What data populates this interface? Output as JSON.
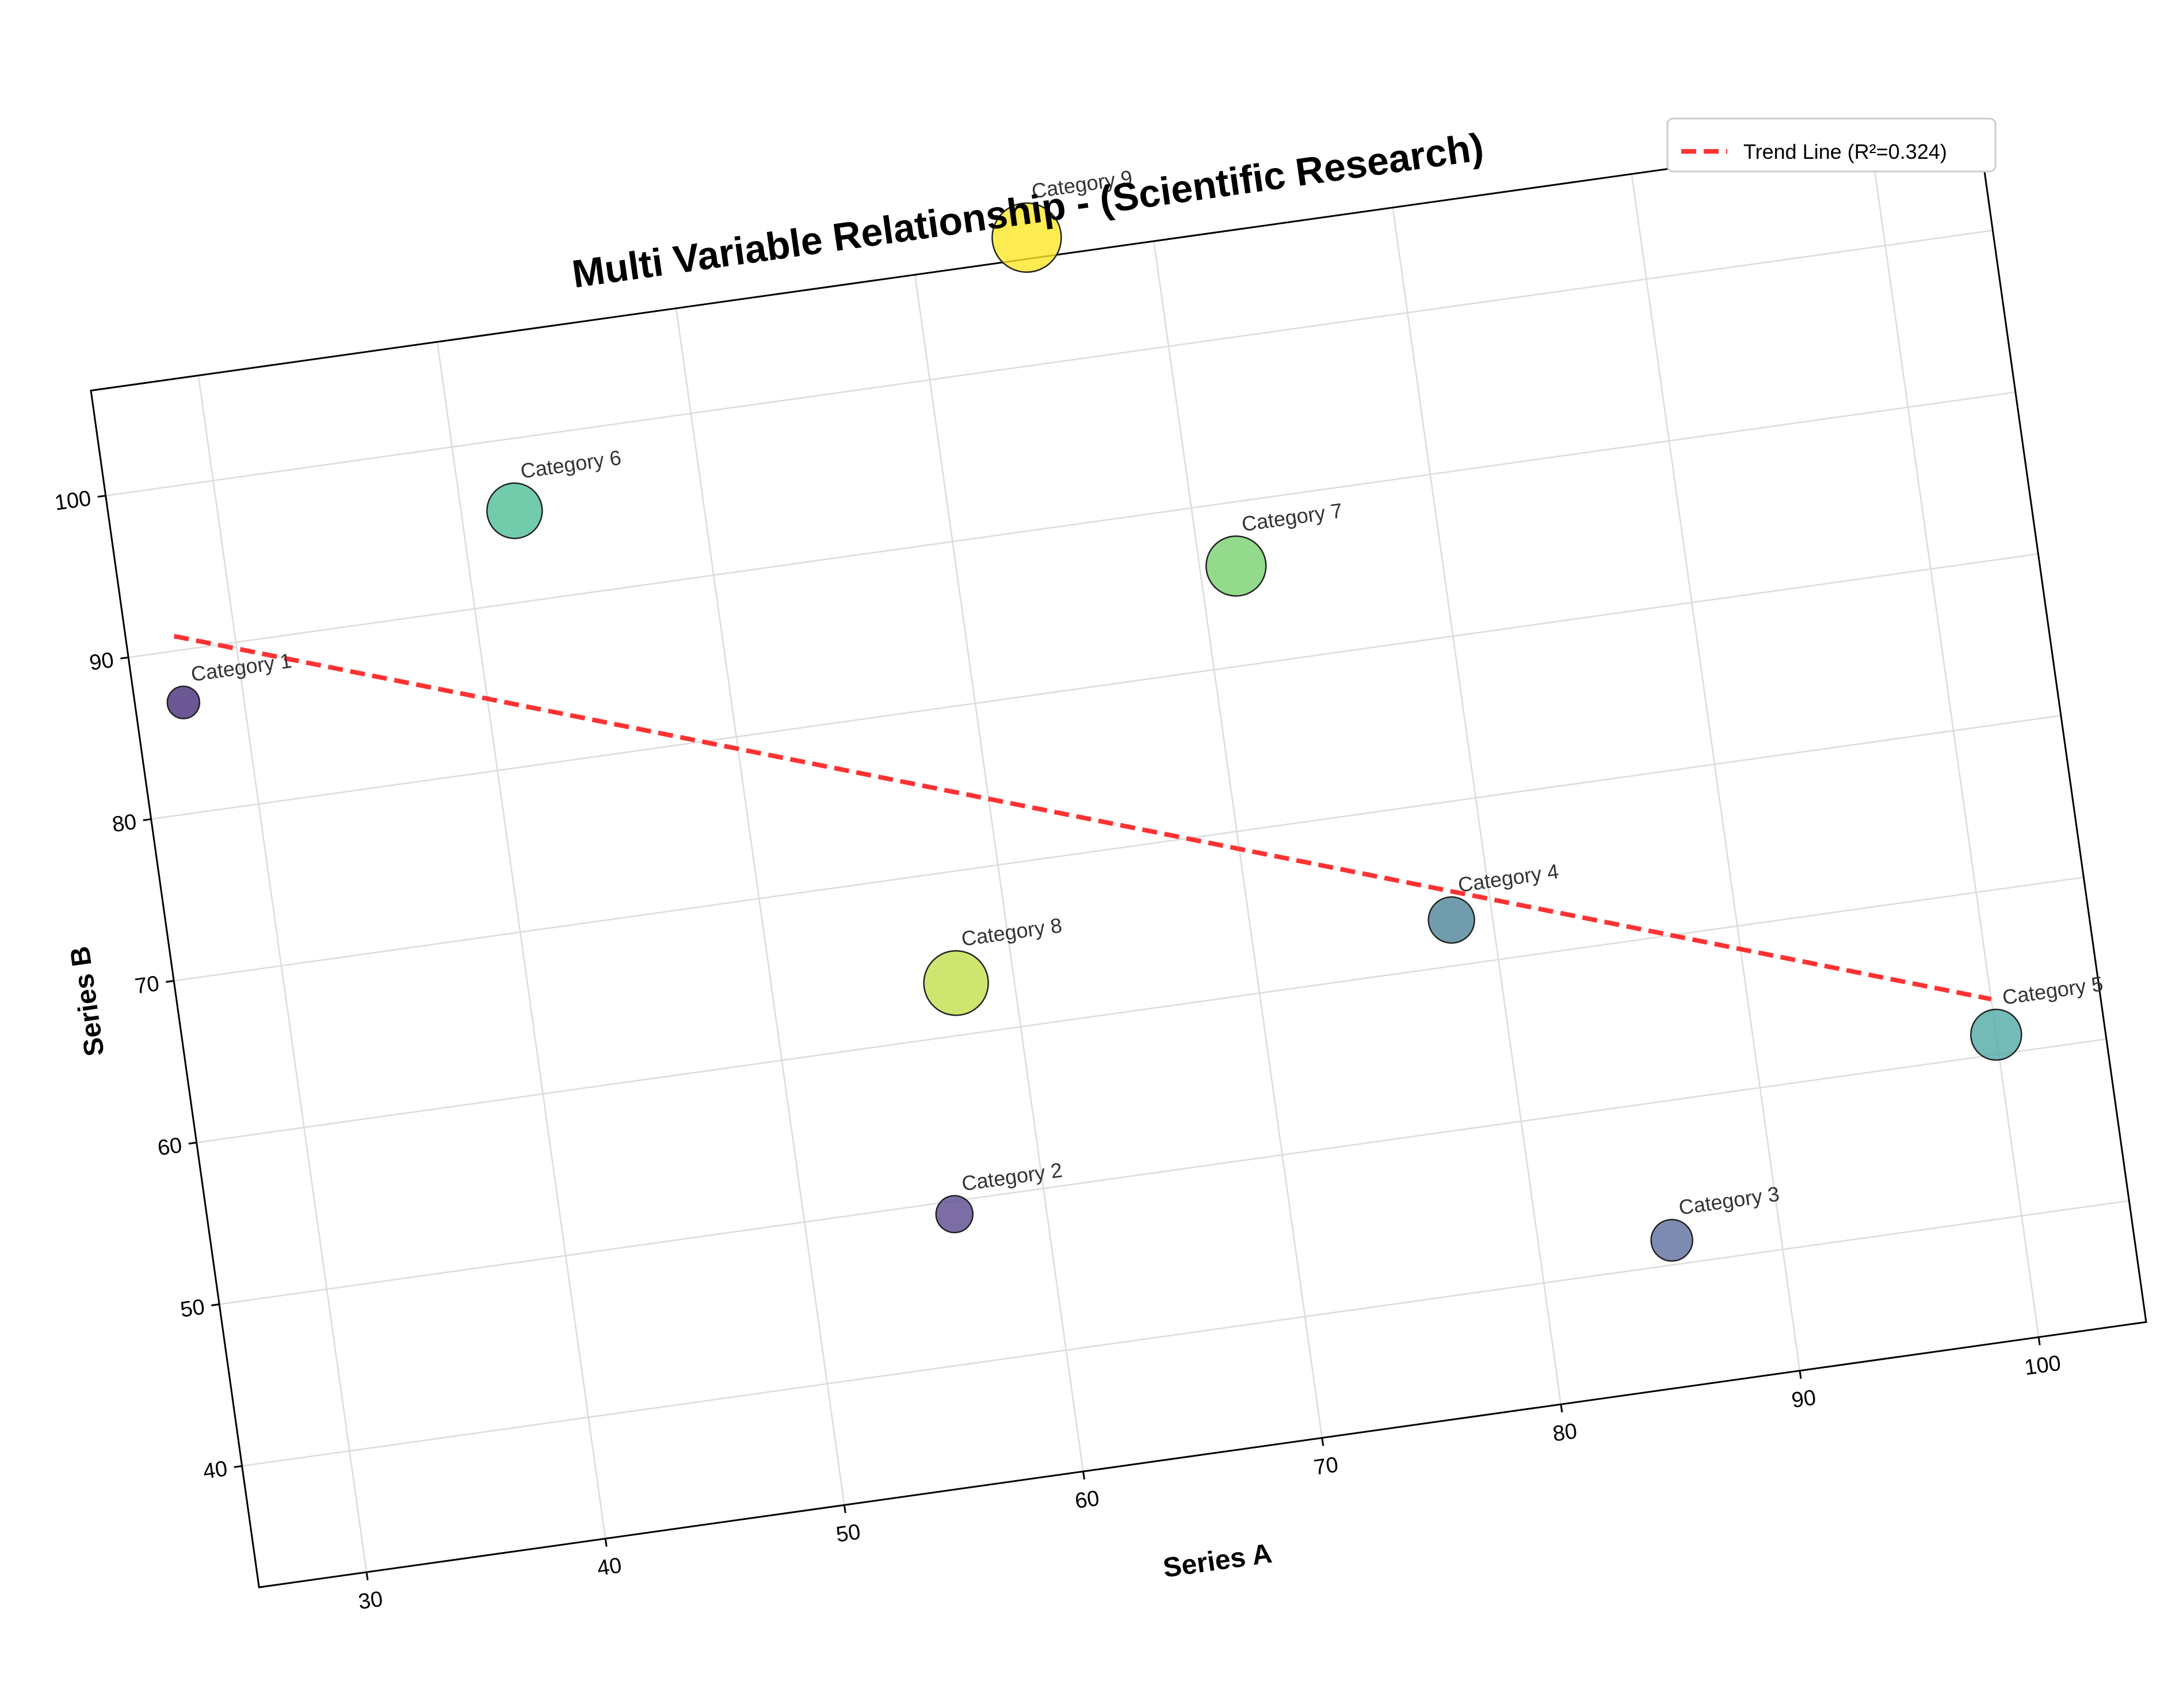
{
  "chart_data": {
    "type": "scatter",
    "title": "Multi Variable Relationship - (Scientific Research)",
    "xlabel": "Series A",
    "ylabel": "Series B",
    "xlim": [
      25.5,
      104.5
    ],
    "ylim": [
      32.5,
      106.5
    ],
    "xticks": [
      30,
      40,
      50,
      60,
      70,
      80,
      90,
      100
    ],
    "yticks": [
      40,
      50,
      60,
      70,
      80,
      90,
      100
    ],
    "grid": true,
    "rotation_degrees": -8,
    "legend_position": "upper right",
    "points": [
      {
        "label": "Category 1",
        "x": 27.5,
        "y": 86.8,
        "size": 1,
        "color": "#472d7b"
      },
      {
        "label": "Category 2",
        "x": 56.2,
        "y": 49.2,
        "size": 2,
        "color": "#5b4a8e"
      },
      {
        "label": "Category 3",
        "x": 85.5,
        "y": 41.5,
        "size": 3,
        "color": "#5d6e9f"
      },
      {
        "label": "Category 4",
        "x": 78.3,
        "y": 62.8,
        "size": 4,
        "color": "#4d8399"
      },
      {
        "label": "Category 5",
        "x": 100.0,
        "y": 51.2,
        "size": 5,
        "color": "#4faaa5"
      },
      {
        "label": "Category 6",
        "x": 42.2,
        "y": 95.6,
        "size": 6,
        "color": "#4fbf97"
      },
      {
        "label": "Category 7",
        "x": 71.5,
        "y": 86.1,
        "size": 7,
        "color": "#78d16f"
      },
      {
        "label": "Category 8",
        "x": 57.6,
        "y": 63.2,
        "size": 8,
        "color": "#c2df4b"
      },
      {
        "label": "Category 9",
        "x": 64.8,
        "y": 107.8,
        "size": 9,
        "color": "#fde725"
      }
    ],
    "trend_line": {
      "label": "Trend Line (R²=0.324)",
      "color": "#ff3333",
      "x": [
        27.5,
        100.0
      ],
      "y": [
        90.9,
        53.4
      ]
    }
  }
}
